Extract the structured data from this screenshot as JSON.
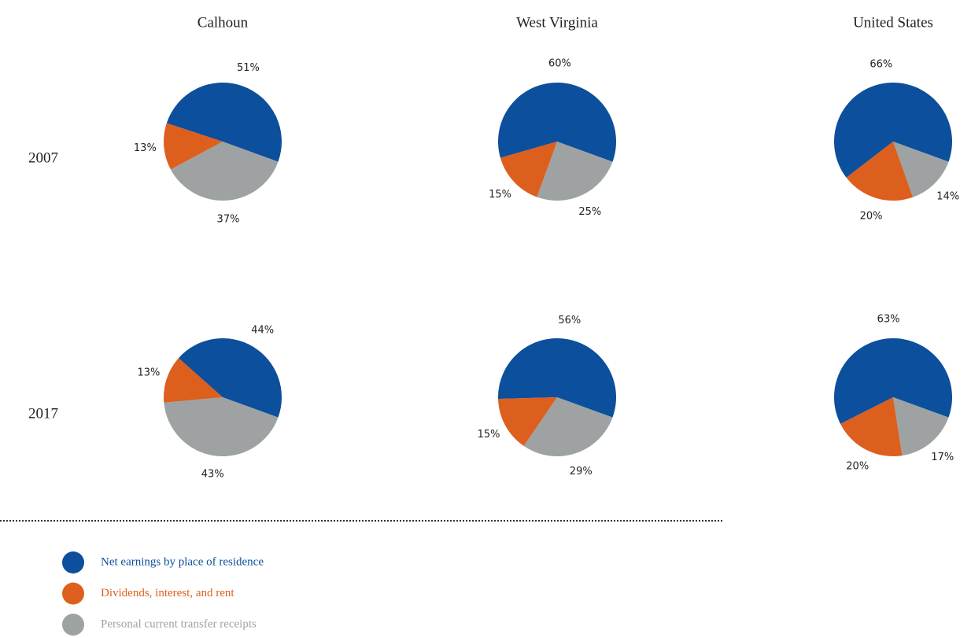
{
  "columns": [
    "Calhoun",
    "West Virginia",
    "United States"
  ],
  "rows": [
    "2007",
    "2017"
  ],
  "legend": {
    "items": [
      {
        "name": "Net earnings by place of residence",
        "color": "#0c4f9c"
      },
      {
        "name": "Dividends, interest, and rent",
        "color": "#dd5f1e"
      },
      {
        "name": "Personal current transfer receipts",
        "color": "#9ea2a3"
      }
    ]
  },
  "chart_data": [
    {
      "type": "pie",
      "values": [
        51,
        13,
        37
      ],
      "value_labels": [
        "51%",
        "13%",
        "37%"
      ]
    },
    {
      "type": "pie",
      "values": [
        60,
        15,
        25
      ],
      "value_labels": [
        "60%",
        "15%",
        "25%"
      ]
    },
    {
      "type": "pie",
      "values": [
        66,
        20,
        14
      ],
      "value_labels": [
        "66%",
        "20%",
        "14%"
      ]
    },
    {
      "type": "pie",
      "values": [
        44,
        13,
        43
      ],
      "value_labels": [
        "44%",
        "13%",
        "43%"
      ]
    },
    {
      "type": "pie",
      "values": [
        56,
        15,
        29
      ],
      "value_labels": [
        "56%",
        "15%",
        "29%"
      ]
    },
    {
      "type": "pie",
      "values": [
        63,
        20,
        17
      ],
      "value_labels": [
        "63%",
        "20%",
        "17%"
      ]
    }
  ]
}
